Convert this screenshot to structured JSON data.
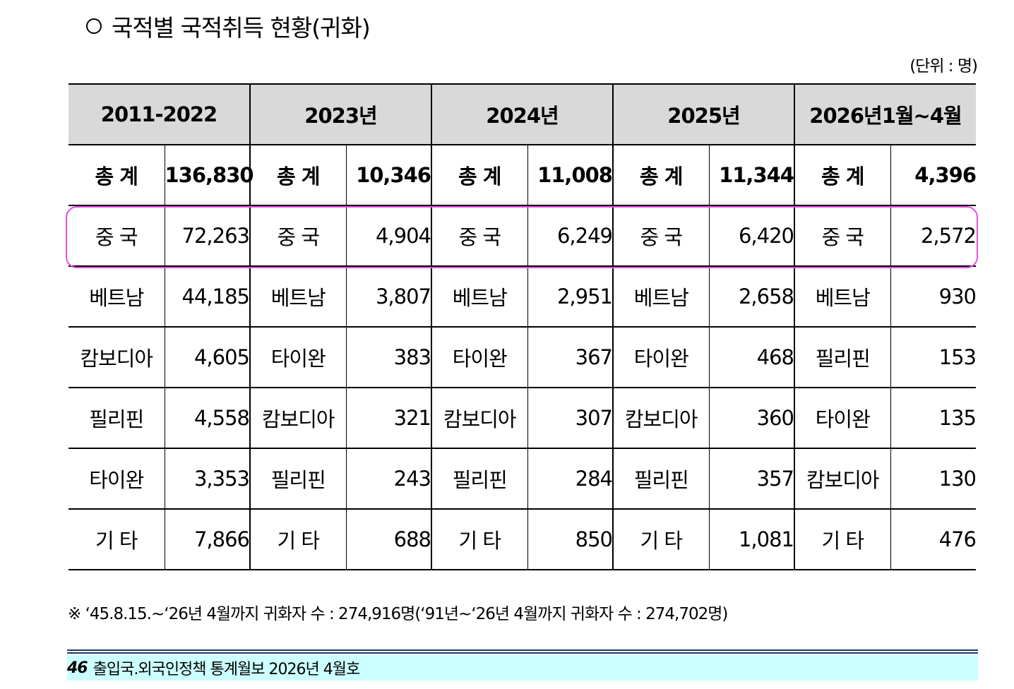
{
  "title": "국적별 국적취득 현황(귀화)",
  "unit": "(단위 : 명)",
  "table": {
    "periods": [
      "2011-2022",
      "2023년",
      "2024년",
      "2025년",
      "2026년1월~4월"
    ],
    "rows": [
      [
        {
          "name": "총 계",
          "value": "136,830"
        },
        {
          "name": "총 계",
          "value": "10,346"
        },
        {
          "name": "총 계",
          "value": "11,008"
        },
        {
          "name": "총 계",
          "value": "11,344"
        },
        {
          "name": "총 계",
          "value": "4,396"
        }
      ],
      [
        {
          "name": "중 국",
          "value": "72,263"
        },
        {
          "name": "중 국",
          "value": "4,904"
        },
        {
          "name": "중 국",
          "value": "6,249"
        },
        {
          "name": "중 국",
          "value": "6,420"
        },
        {
          "name": "중 국",
          "value": "2,572"
        }
      ],
      [
        {
          "name": "베트남",
          "value": "44,185"
        },
        {
          "name": "베트남",
          "value": "3,807"
        },
        {
          "name": "베트남",
          "value": "2,951"
        },
        {
          "name": "베트남",
          "value": "2,658"
        },
        {
          "name": "베트남",
          "value": "930"
        }
      ],
      [
        {
          "name": "캄보디아",
          "value": "4,605"
        },
        {
          "name": "타이완",
          "value": "383"
        },
        {
          "name": "타이완",
          "value": "367"
        },
        {
          "name": "타이완",
          "value": "468"
        },
        {
          "name": "필리핀",
          "value": "153"
        }
      ],
      [
        {
          "name": "필리핀",
          "value": "4,558"
        },
        {
          "name": "캄보디아",
          "value": "321"
        },
        {
          "name": "캄보디아",
          "value": "307"
        },
        {
          "name": "캄보디아",
          "value": "360"
        },
        {
          "name": "타이완",
          "value": "135"
        }
      ],
      [
        {
          "name": "타이완",
          "value": "3,353"
        },
        {
          "name": "필리핀",
          "value": "243"
        },
        {
          "name": "필리핀",
          "value": "284"
        },
        {
          "name": "필리핀",
          "value": "357"
        },
        {
          "name": "캄보디아",
          "value": "130"
        }
      ],
      [
        {
          "name": "기 타",
          "value": "7,866"
        },
        {
          "name": "기 타",
          "value": "688"
        },
        {
          "name": "기 타",
          "value": "850"
        },
        {
          "name": "기 타",
          "value": "1,081"
        },
        {
          "name": "기 타",
          "value": "476"
        }
      ]
    ]
  },
  "note": "※ ‘45.8.15.~‘26년 4월까지 귀화자 수 : 274,916명(‘91년~‘26년 4월까지 귀화자 수 : 274,702명)",
  "footer": {
    "page": "46",
    "text": "출입국.외국인정책 통계월보 2026년 4월호"
  },
  "colors": {
    "header_bg": "#d9d9d9",
    "highlight": "#ea4bea",
    "footer_bg": "#ccffff",
    "footer_rule": "#1f3864"
  }
}
